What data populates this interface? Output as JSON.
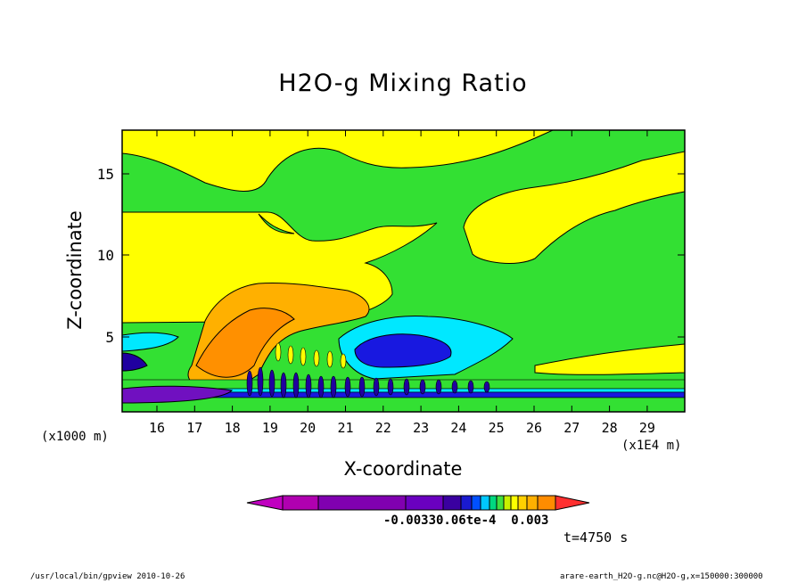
{
  "chart_data": {
    "type": "heatmap",
    "title": "H2O-g Mixing Ratio",
    "xlabel": "X-coordinate",
    "ylabel": "Z-coordinate",
    "x_unit_left": "(x1000 m)",
    "x_unit_right": "(x1E4 m)",
    "x_ticks": [
      "16",
      "17",
      "18",
      "19",
      "20",
      "21",
      "22",
      "23",
      "24",
      "25",
      "26",
      "27",
      "28",
      "29"
    ],
    "y_ticks": [
      "5",
      "10",
      "15"
    ],
    "colorbar_labels": [
      "-0.00330.06te-4",
      "0.003"
    ],
    "colorbar_colors": [
      "#c000c0",
      "#b000b0",
      "#8000b0",
      "#6a00c0",
      "#3a00a0",
      "#1a1ad0",
      "#0050ff",
      "#00c8ff",
      "#00d880",
      "#40e040",
      "#c8f000",
      "#ffff00",
      "#ffd000",
      "#ffb000",
      "#ff8c00",
      "#ff3030"
    ]
  },
  "annotations": {
    "time": "t=4750 s",
    "footer_left": "/usr/local/bin/gpview  2010-10-26",
    "footer_right": "arare-earth_H2O-g.nc@H2O-g,x=150000:300000"
  },
  "colors": {
    "green": "#33e033",
    "yellow": "#ffff00",
    "orange": "#ffb000",
    "dark_orange": "#ff9000",
    "cyan": "#00e8ff",
    "blue": "#1818e0",
    "navy": "#2000a0",
    "purple": "#7010c0"
  }
}
